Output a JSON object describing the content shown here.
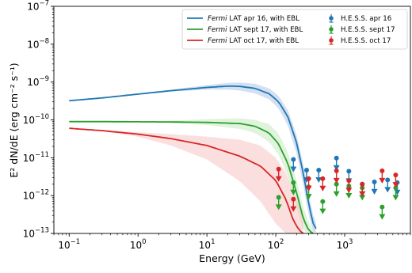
{
  "chart_data": {
    "type": "line",
    "xlabel": "Energy (GeV)",
    "ylabel": "E² dN/dE (erg cm⁻² s⁻¹)",
    "xscale": "log",
    "yscale": "log",
    "xlim": [
      0.06,
      9000
    ],
    "ylim": [
      1e-13,
      1e-07
    ],
    "x_ticks": [
      {
        "value": 0.1,
        "mantissa": "10",
        "exp": "−1"
      },
      {
        "value": 1,
        "mantissa": "10",
        "exp": "0"
      },
      {
        "value": 10,
        "mantissa": "10",
        "exp": "1"
      },
      {
        "value": 100,
        "mantissa": "10",
        "exp": "2"
      },
      {
        "value": 1000,
        "mantissa": "10",
        "exp": "3"
      }
    ],
    "y_ticks": [
      {
        "value": 1e-13,
        "mantissa": "10",
        "exp": "−13"
      },
      {
        "value": 1e-12,
        "mantissa": "10",
        "exp": "−12"
      },
      {
        "value": 1e-11,
        "mantissa": "10",
        "exp": "−11"
      },
      {
        "value": 1e-10,
        "mantissa": "10",
        "exp": "−10"
      },
      {
        "value": 1e-09,
        "mantissa": "10",
        "exp": "−9"
      },
      {
        "value": 1e-08,
        "mantissa": "10",
        "exp": "−8"
      },
      {
        "value": 1e-07,
        "mantissa": "10",
        "exp": "−7"
      }
    ],
    "legend_position": "top-right",
    "lines": [
      {
        "name_italic": "Fermi",
        "name_rest": " LAT apr 16, with EBL",
        "color": "#1f77b4",
        "band_color": "#aec7e8",
        "x": [
          0.1,
          0.3,
          1,
          3,
          10,
          20,
          30,
          50,
          80,
          110,
          150,
          200,
          250,
          300,
          350,
          420
        ],
        "y": [
          3.2e-10,
          3.8e-10,
          4.8e-10,
          5.9e-10,
          7.2e-10,
          7.8e-10,
          7.7e-10,
          6.8e-10,
          4.9e-10,
          3e-10,
          1.2e-10,
          2.5e-11,
          4e-12,
          6e-13,
          1.8e-13,
          1e-13
        ],
        "band_low": [
          3.1e-10,
          3.7e-10,
          4.6e-10,
          5.6e-10,
          6.3e-10,
          6.3e-10,
          6e-10,
          5e-10,
          3.5e-10,
          2e-10,
          7e-11,
          1.3e-11,
          2e-12,
          3e-13,
          1.1e-13,
          1e-13
        ],
        "band_high": [
          3.3e-10,
          3.9e-10,
          5e-10,
          6.3e-10,
          8.3e-10,
          9.5e-10,
          9.7e-10,
          9e-10,
          6.8e-10,
          4.3e-10,
          1.8e-10,
          4e-11,
          7e-12,
          1.1e-12,
          3e-13,
          1.3e-13
        ]
      },
      {
        "name_italic": "Fermi",
        "name_rest": " LAT sept 17, with EBL",
        "color": "#2ca02c",
        "band_color": "#c7e9c0",
        "x": [
          0.1,
          0.3,
          1,
          3,
          10,
          30,
          50,
          80,
          110,
          150,
          200,
          250,
          300,
          350
        ],
        "y": [
          9e-11,
          9e-11,
          8.9e-11,
          8.8e-11,
          8.6e-11,
          8e-11,
          6.8e-11,
          4.5e-11,
          2.3e-11,
          7e-12,
          1.2e-12,
          2.5e-13,
          1.2e-13,
          1e-13
        ],
        "band_low": [
          9e-11,
          9e-11,
          8.7e-11,
          8.3e-11,
          7.3e-11,
          5.8e-11,
          4.5e-11,
          2.6e-11,
          1.2e-11,
          3.2e-12,
          5e-13,
          1.2e-13,
          1e-13,
          1e-13
        ],
        "band_high": [
          9e-11,
          9e-11,
          9.1e-11,
          9.5e-11,
          1.05e-10,
          1.1e-10,
          1e-10,
          7.8e-11,
          4.3e-11,
          1.4e-11,
          2.6e-12,
          5e-13,
          2e-13,
          1.2e-13
        ]
      },
      {
        "name_italic": "Fermi",
        "name_rest": " LAT oct 17, with EBL",
        "color": "#d62728",
        "band_color": "#f7c4c4",
        "x": [
          0.1,
          0.3,
          1,
          3,
          10,
          30,
          60,
          100,
          140,
          180,
          220,
          250
        ],
        "y": [
          6e-11,
          5.2e-11,
          4.2e-11,
          3.2e-11,
          2.1e-11,
          1.1e-11,
          6e-12,
          2.5e-12,
          8e-13,
          2.2e-13,
          1.2e-13,
          1e-13
        ],
        "band_low": [
          6e-11,
          5e-11,
          3.6e-11,
          2.1e-11,
          9e-12,
          2.4e-12,
          7e-13,
          1.8e-13,
          1e-13,
          1e-13,
          1e-13,
          1e-13
        ],
        "band_high": [
          6e-11,
          5.4e-11,
          4.7e-11,
          4.2e-11,
          3.6e-11,
          3e-11,
          2.1e-11,
          1e-11,
          4e-12,
          1.3e-12,
          5e-13,
          3e-13
        ]
      }
    ],
    "points": [
      {
        "name": "H.E.S.S. apr 16",
        "color": "#1f77b4",
        "x": [
          180,
          280,
          420,
          760,
          1150,
          1800,
          2700,
          4200,
          5800
        ],
        "y": [
          9e-12,
          4.7e-12,
          4.7e-12,
          9.8e-12,
          4.4e-12,
          2e-12,
          2.3e-12,
          2.6e-12,
          2.2e-12
        ]
      },
      {
        "name": "H.E.S.S. sept 17",
        "color": "#2ca02c",
        "x": [
          110,
          180,
          300,
          480,
          760,
          1150,
          1800,
          3500,
          5500
        ],
        "y": [
          9e-13,
          2.2e-12,
          1.7e-12,
          7e-13,
          2e-12,
          1.8e-12,
          1.6e-12,
          5e-13,
          1.6e-12
        ]
      },
      {
        "name": "H.E.S.S. oct 17",
        "color": "#d62728",
        "x": [
          110,
          180,
          300,
          480,
          760,
          1150,
          1800,
          3500,
          5500
        ],
        "y": [
          5e-12,
          8e-13,
          2.8e-12,
          2.8e-12,
          4.5e-12,
          2.5e-12,
          2e-12,
          4.5e-12,
          3.5e-12
        ]
      }
    ]
  }
}
